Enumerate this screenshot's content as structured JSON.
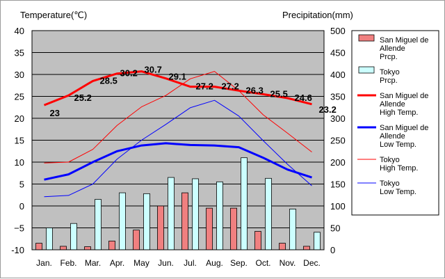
{
  "chart_data": {
    "type": "bar+line",
    "categories": [
      "Jan.",
      "Feb.",
      "Mar.",
      "Apr.",
      "May",
      "Jun.",
      "Jul.",
      "Aug.",
      "Sep.",
      "Oct.",
      "Nov.",
      "Dec."
    ],
    "left_axis": {
      "label": "Temperature(℃)",
      "min": -10,
      "max": 40,
      "ticks": [
        "-10",
        "−5",
        "0",
        "5",
        "10",
        "15",
        "20",
        "25",
        "30",
        "35",
        "40"
      ]
    },
    "right_axis": {
      "label": "Precipitation(mm)",
      "min": 0,
      "max": 500,
      "ticks": [
        "0",
        "50",
        "100",
        "150",
        "200",
        "250",
        "300",
        "350",
        "400",
        "450",
        "500"
      ]
    },
    "series": [
      {
        "name": "San Miguel de Allende Prcp.",
        "legend": [
          "San Miguel de",
          "Allende",
          "Prcp."
        ],
        "kind": "bar",
        "axis": "right",
        "color": "#f08080",
        "values": [
          15,
          8,
          7,
          20,
          45,
          100,
          130,
          95,
          95,
          42,
          15,
          8
        ]
      },
      {
        "name": "Tokyo Prcp.",
        "legend": [
          "Tokyo",
          "Prcp."
        ],
        "kind": "bar",
        "axis": "right",
        "color": "#ccffff",
        "values": [
          50,
          60,
          115,
          130,
          128,
          165,
          162,
          155,
          210,
          163,
          93,
          40
        ]
      },
      {
        "name": "San Miguel de Allende High Temp.",
        "legend": [
          "San Miguel de",
          "Allende",
          "High Temp."
        ],
        "kind": "line",
        "axis": "left",
        "color": "#ff0000",
        "width": 3,
        "values": [
          23,
          25.2,
          28.5,
          30.2,
          30.7,
          29.1,
          27.2,
          27.2,
          26.3,
          25.5,
          24.6,
          23.2
        ],
        "labels": [
          "23",
          "25.2",
          "28.5",
          "30.2",
          "30.7",
          "29.1",
          "27.2",
          "27.2",
          "26.3",
          "25.5",
          "24.6",
          "23.2"
        ]
      },
      {
        "name": "San Miguel de Allende Low Temp.",
        "legend": [
          "San Miguel de",
          "Allende",
          "Low Temp."
        ],
        "kind": "line",
        "axis": "left",
        "color": "#0000ff",
        "width": 3,
        "values": [
          6,
          7.2,
          10,
          12.5,
          13.8,
          14.3,
          13.9,
          13.8,
          13.4,
          11,
          8.3,
          6.5
        ]
      },
      {
        "name": "Tokyo High Temp.",
        "legend": [
          "Tokyo",
          "High Temp."
        ],
        "kind": "line",
        "axis": "left",
        "color": "#ff0000",
        "width": 1,
        "values": [
          9.8,
          10,
          12.9,
          18.4,
          22.6,
          25.2,
          29,
          30.7,
          26.3,
          20.8,
          16.6,
          12.3
        ]
      },
      {
        "name": "Tokyo Low Temp.",
        "legend": [
          "Tokyo",
          "Low Temp."
        ],
        "kind": "line",
        "axis": "left",
        "color": "#0000ff",
        "width": 1,
        "values": [
          2.1,
          2.4,
          5,
          10.7,
          15,
          18.6,
          22.4,
          24.1,
          20.5,
          14.9,
          9.5,
          4.6
        ]
      }
    ],
    "plot_background": "#c0c0c0",
    "grid": true,
    "legend_position": "right"
  }
}
